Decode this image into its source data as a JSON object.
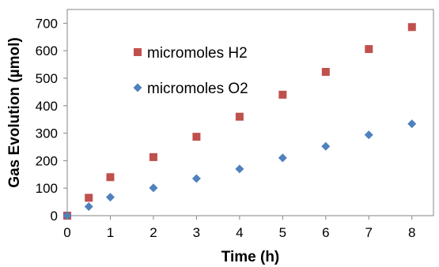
{
  "chart_data": {
    "type": "scatter",
    "title": "",
    "xlabel": "Time (h)",
    "ylabel": "Gas Evolution (µmol)",
    "xlim": [
      0,
      8.5
    ],
    "ylim": [
      0,
      750
    ],
    "xticks": [
      0,
      1,
      2,
      3,
      4,
      5,
      6,
      7,
      8
    ],
    "yticks": [
      0,
      100,
      200,
      300,
      400,
      500,
      600,
      700
    ],
    "grid": false,
    "legend_position": "top-left-inside",
    "series": [
      {
        "name": "micromoles H2",
        "marker": "square",
        "color": "#c0504d",
        "x": [
          0,
          0.5,
          1,
          2,
          3,
          4,
          5,
          6,
          7,
          8
        ],
        "y": [
          0,
          65,
          140,
          213,
          287,
          360,
          440,
          523,
          606,
          686
        ]
      },
      {
        "name": "micromoles O2",
        "marker": "diamond",
        "color": "#4f81bd",
        "x": [
          0,
          0.5,
          1,
          2,
          3,
          4,
          5,
          6,
          7,
          8
        ],
        "y": [
          0,
          33,
          67,
          101,
          135,
          170,
          210,
          252,
          294,
          334
        ]
      }
    ]
  }
}
